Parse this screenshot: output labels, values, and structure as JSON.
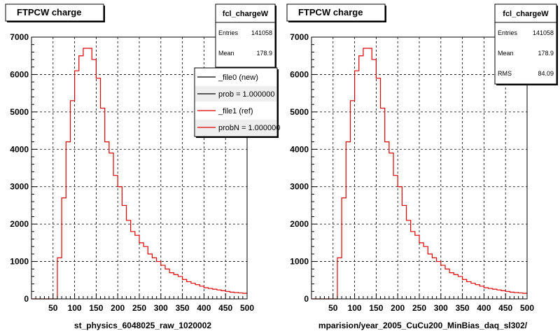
{
  "colors": {
    "frame": "#000000",
    "grid": "#000000",
    "ref_line": "#dd0000",
    "new_line": "#000000",
    "background": "#ffffff"
  },
  "footer_text": "",
  "panels": [
    {
      "title": "FTPCW charge",
      "stats": {
        "name": "fcl_chargeW",
        "entries_label": "Entries",
        "entries": "141058",
        "mean_label": "Mean",
        "mean": "178.9"
      },
      "legend": [
        {
          "label": "_file0 (new)",
          "color": "#000000"
        },
        {
          "label": "prob = 1.000000",
          "color": "#000000"
        },
        {
          "label": "_file1 (ref)",
          "color": "#dd0000"
        },
        {
          "label": "probN = 1.000000",
          "color": "#dd0000"
        }
      ],
      "xlabel": "st_physics_6048025_raw_1020002"
    },
    {
      "title": "FTPCW charge",
      "stats": {
        "name": "fcl_chargeW",
        "entries_label": "Entries",
        "entries": "141058",
        "mean_label": "Mean",
        "mean": "178.9",
        "rms_label": "RMS",
        "rms": "84.09"
      },
      "xlabel": "mparision/year_2005_CuCu200_MinBias_daq_sl302/"
    }
  ],
  "chart_data": {
    "type": "line",
    "style": "histogram-step",
    "xlim": [
      0,
      500
    ],
    "ylim": [
      0,
      7000
    ],
    "x_ticks": [
      50,
      100,
      150,
      200,
      250,
      300,
      350,
      400,
      450,
      500
    ],
    "y_ticks": [
      0,
      1000,
      2000,
      3000,
      4000,
      5000,
      6000,
      7000
    ],
    "grid": true,
    "bin_width": 10,
    "bin_low_edges": [
      0,
      10,
      20,
      30,
      40,
      50,
      60,
      70,
      80,
      90,
      100,
      110,
      120,
      130,
      140,
      150,
      160,
      170,
      180,
      190,
      200,
      210,
      220,
      230,
      240,
      250,
      260,
      270,
      280,
      290,
      300,
      310,
      320,
      330,
      340,
      350,
      360,
      370,
      380,
      390,
      400,
      410,
      420,
      430,
      440,
      450,
      460,
      470,
      480,
      490
    ],
    "series": [
      {
        "values": [
          0,
          0,
          0,
          0,
          0,
          0,
          1100,
          2700,
          4200,
          5300,
          6100,
          6500,
          6700,
          6700,
          6400,
          5900,
          5100,
          4200,
          3900,
          3300,
          3000,
          2500,
          2100,
          1800,
          1700,
          1500,
          1400,
          1200,
          1100,
          1000,
          900,
          800,
          700,
          650,
          600,
          520,
          460,
          420,
          380,
          340,
          300,
          280,
          260,
          240,
          220,
          200,
          180,
          170,
          160,
          150
        ],
        "color": "#dd0000"
      }
    ]
  }
}
